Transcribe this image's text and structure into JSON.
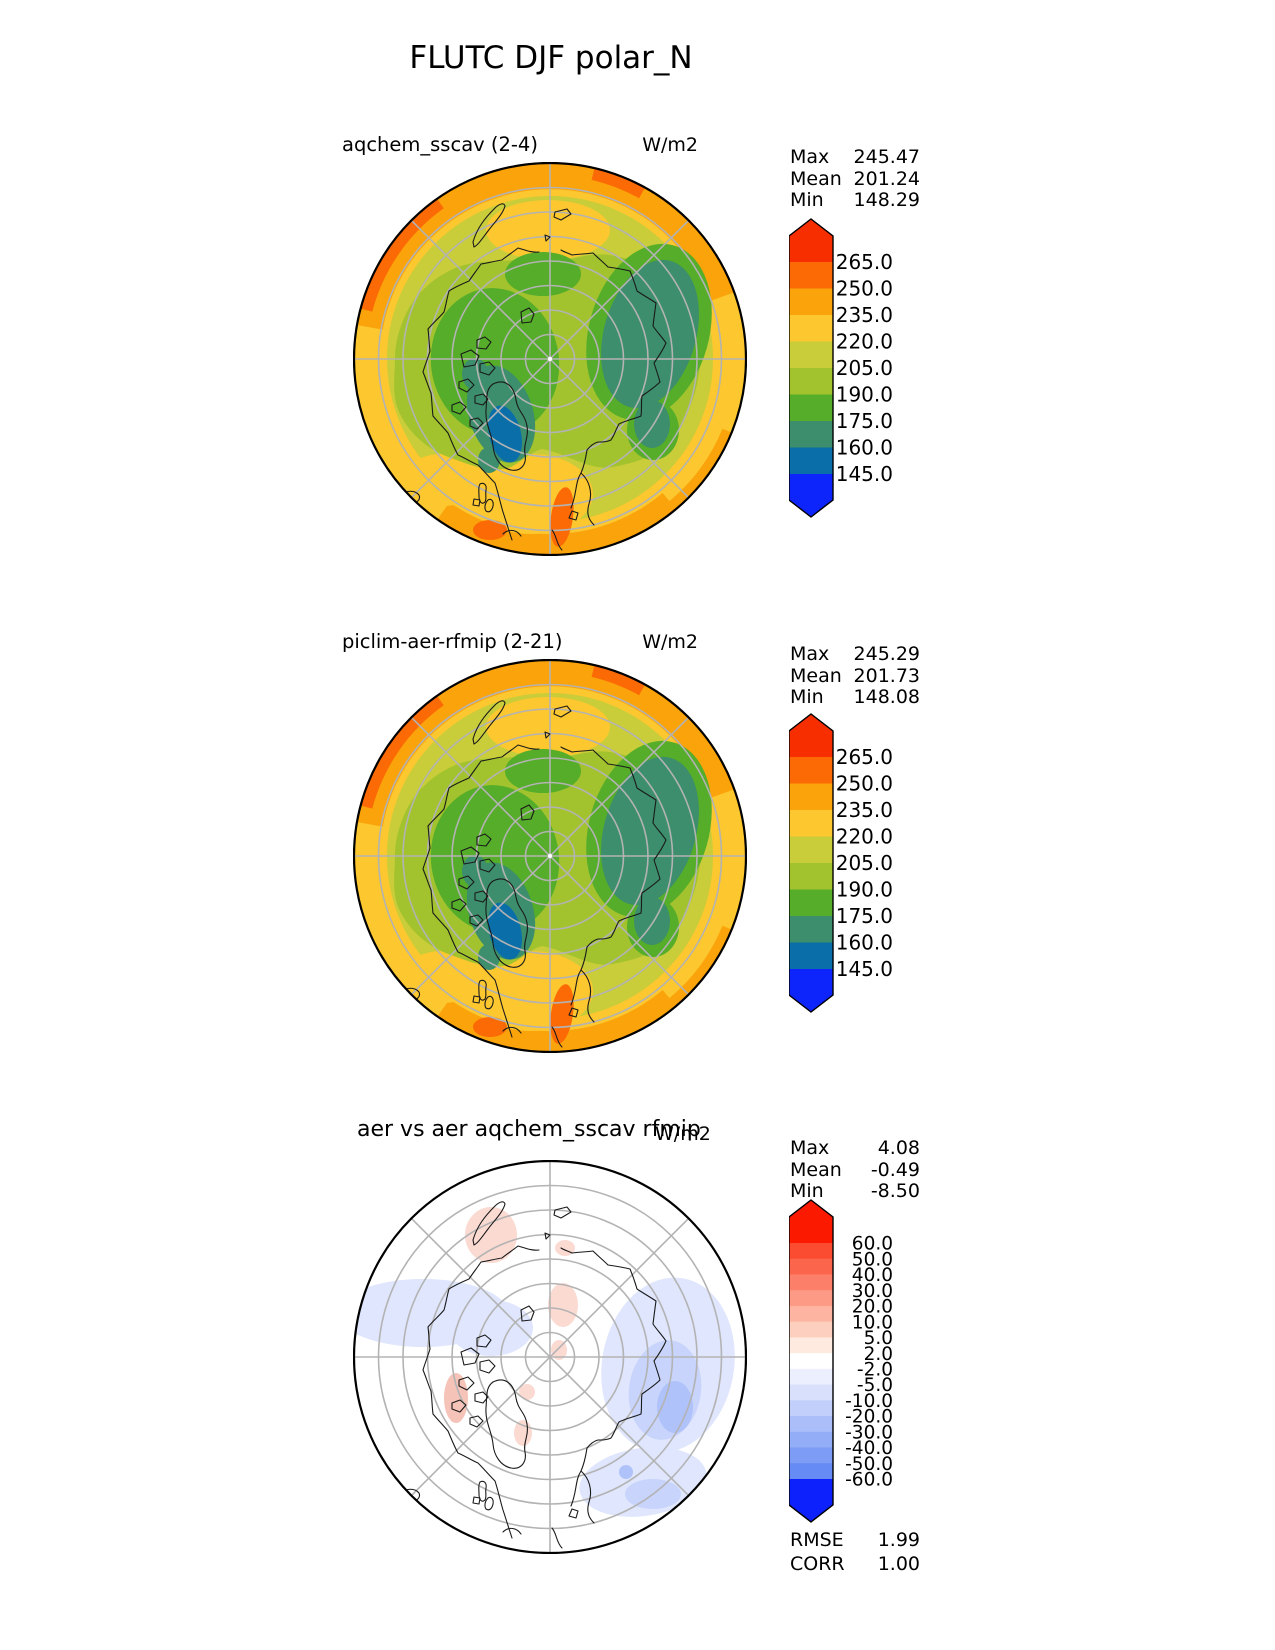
{
  "page_title": "FLUTC DJF polar_N",
  "panels": [
    {
      "title": "aqchem_sscav (2-4)",
      "units": "W/m2",
      "stats": [
        {
          "label": "Max",
          "value": "245.47"
        },
        {
          "label": "Mean",
          "value": "201.24"
        },
        {
          "label": "Min",
          "value": "148.29"
        }
      ],
      "colorbar": {
        "labels": [
          "265.0",
          "250.0",
          "235.0",
          "220.0",
          "205.0",
          "190.0",
          "175.0",
          "160.0",
          "145.0"
        ],
        "colors": [
          "#f62e00",
          "#fb6a05",
          "#fba30a",
          "#fcc72f",
          "#c9cd39",
          "#a2c32e",
          "#55ad29",
          "#3c8e6c",
          "#0a6fa9",
          "#0d24fb"
        ]
      }
    },
    {
      "title": "piclim-aer-rfmip (2-21)",
      "units": "W/m2",
      "stats": [
        {
          "label": "Max",
          "value": "245.29"
        },
        {
          "label": "Mean",
          "value": "201.73"
        },
        {
          "label": "Min",
          "value": "148.08"
        }
      ],
      "colorbar": {
        "labels": [
          "265.0",
          "250.0",
          "235.0",
          "220.0",
          "205.0",
          "190.0",
          "175.0",
          "160.0",
          "145.0"
        ],
        "colors": [
          "#f62e00",
          "#fb6a05",
          "#fba30a",
          "#fcc72f",
          "#c9cd39",
          "#a2c32e",
          "#55ad29",
          "#3c8e6c",
          "#0a6fa9",
          "#0d24fb"
        ]
      }
    },
    {
      "title": "aer vs aer aqchem_sscav rfmip",
      "units": "W/m2",
      "stats": [
        {
          "label": "Max",
          "value": "4.08"
        },
        {
          "label": "Mean",
          "value": "-0.49"
        },
        {
          "label": "Min",
          "value": "-8.50"
        }
      ],
      "metrics": [
        {
          "label": "RMSE",
          "value": "1.99"
        },
        {
          "label": "CORR",
          "value": "1.00"
        }
      ],
      "colorbar": {
        "labels": [
          "60.0",
          "50.0",
          "40.0",
          "30.0",
          "20.0",
          "10.0",
          "5.0",
          "2.0",
          "-2.0",
          "-5.0",
          "-10.0",
          "-20.0",
          "-30.0",
          "-40.0",
          "-50.0",
          "-60.0"
        ],
        "colors": [
          "#fb1900",
          "#fb4b31",
          "#fb654c",
          "#fc8069",
          "#fc9a85",
          "#fdb5a2",
          "#fdcfbf",
          "#feeade",
          "#ffffff",
          "#eceffd",
          "#d9e0fc",
          "#c2cffa",
          "#abbef9",
          "#94adf7",
          "#7d9cf6",
          "#668bf4",
          "#0c21fb"
        ]
      }
    }
  ],
  "chart_data": [
    {
      "type": "heatmap",
      "subtype": "filled-contour north polar stereographic map",
      "variable": "FLUTC",
      "season": "DJF",
      "region": "polar_N",
      "title": "aqchem_sscav (2-4)",
      "units": "W/m2",
      "stats": {
        "max": 245.47,
        "mean": 201.24,
        "min": 148.29
      },
      "contour_levels": [
        145.0,
        160.0,
        175.0,
        190.0,
        205.0,
        220.0,
        235.0,
        250.0,
        265.0
      ],
      "colorbar_extend": "both",
      "colorbar_colors_high_to_low": [
        "#f62e00",
        "#fb6a05",
        "#fba30a",
        "#fcc72f",
        "#c9cd39",
        "#a2c32e",
        "#55ad29",
        "#3c8e6c",
        "#0a6fa9",
        "#0d24fb"
      ],
      "legend_position": "right"
    },
    {
      "type": "heatmap",
      "subtype": "filled-contour north polar stereographic map",
      "variable": "FLUTC",
      "season": "DJF",
      "region": "polar_N",
      "title": "piclim-aer-rfmip (2-21)",
      "units": "W/m2",
      "stats": {
        "max": 245.29,
        "mean": 201.73,
        "min": 148.08
      },
      "contour_levels": [
        145.0,
        160.0,
        175.0,
        190.0,
        205.0,
        220.0,
        235.0,
        250.0,
        265.0
      ],
      "colorbar_extend": "both",
      "colorbar_colors_high_to_low": [
        "#f62e00",
        "#fb6a05",
        "#fba30a",
        "#fcc72f",
        "#c9cd39",
        "#a2c32e",
        "#55ad29",
        "#3c8e6c",
        "#0a6fa9",
        "#0d24fb"
      ],
      "legend_position": "right"
    },
    {
      "type": "heatmap",
      "subtype": "difference map, filled-contour north polar stereographic",
      "variable": "FLUTC",
      "season": "DJF",
      "region": "polar_N",
      "title": "aer vs aer aqchem_sscav rfmip",
      "units": "W/m2",
      "stats": {
        "max": 4.08,
        "mean": -0.49,
        "min": -8.5,
        "rmse": 1.99,
        "corr": 1.0
      },
      "contour_levels": [
        -60.0,
        -50.0,
        -40.0,
        -30.0,
        -20.0,
        -10.0,
        -5.0,
        -2.0,
        2.0,
        5.0,
        10.0,
        20.0,
        30.0,
        40.0,
        50.0,
        60.0
      ],
      "colorbar_extend": "both",
      "colorbar_colors_high_to_low": [
        "#fb1900",
        "#fb4b31",
        "#fb654c",
        "#fc8069",
        "#fc9a85",
        "#fdb5a2",
        "#fdcfbf",
        "#feeade",
        "#ffffff",
        "#eceffd",
        "#d9e0fc",
        "#c2cffa",
        "#abbef9",
        "#94adf7",
        "#7d9cf6",
        "#668bf4",
        "#0c21fb"
      ],
      "legend_position": "right"
    }
  ]
}
